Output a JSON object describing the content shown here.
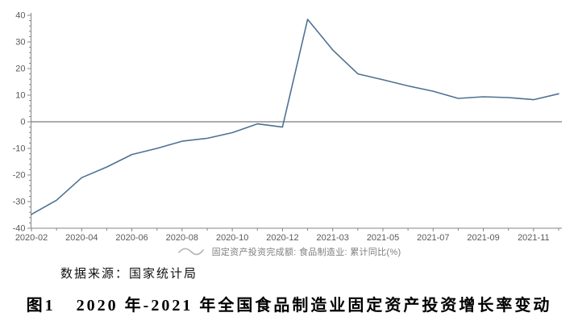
{
  "chart_data": {
    "type": "line",
    "x": [
      "2020-02",
      "2020-03",
      "2020-04",
      "2020-05",
      "2020-06",
      "2020-07",
      "2020-08",
      "2020-09",
      "2020-10",
      "2020-11",
      "2020-12",
      "2021-02",
      "2021-03",
      "2021-04",
      "2021-05",
      "2021-06",
      "2021-07",
      "2021-08",
      "2021-09",
      "2021-10",
      "2021-11",
      "2021-12"
    ],
    "series": [
      {
        "name": "固定资产投资完成额: 食品制造业: 累计同比(%)",
        "values": [
          -34.8,
          -29.5,
          -21.0,
          -17.0,
          -12.3,
          -10.0,
          -7.3,
          -6.2,
          -4.1,
          -0.8,
          -2.0,
          38.5,
          27.0,
          18.0,
          15.8,
          13.5,
          11.5,
          8.8,
          9.4,
          9.1,
          8.3,
          10.5
        ]
      }
    ],
    "x_tick_labels": [
      "2020-02",
      "2020-04",
      "2020-06",
      "2020-08",
      "2020-10",
      "2020-12",
      "2021-03",
      "2021-05",
      "2021-07",
      "2021-09",
      "2021-11"
    ],
    "x_labeled_indices": [
      0,
      2,
      4,
      6,
      8,
      10,
      12,
      14,
      16,
      18,
      20
    ],
    "y_ticks": [
      40,
      30,
      20,
      10,
      0,
      -10,
      -20,
      -30,
      -40
    ],
    "y_minor_step": 2,
    "ylim": [
      -40,
      40
    ],
    "grid": false,
    "zero_line": true,
    "legend_position": "bottom",
    "line_color": "#4e7193",
    "axis_color": "#858585",
    "zero_line_color": "#5a5a5a",
    "tick_label_color": "#595959"
  },
  "legend": {
    "label": "固定资产投资完成额: 食品制造业: 累计同比(%)",
    "icon": "wave-line-icon",
    "icon_color": "#b3b3b3"
  },
  "source_note": "数据来源：国家统计局",
  "caption": {
    "label": "图1",
    "title": "2020 年-2021 年全国食品制造业固定资产投资增长率变动"
  }
}
